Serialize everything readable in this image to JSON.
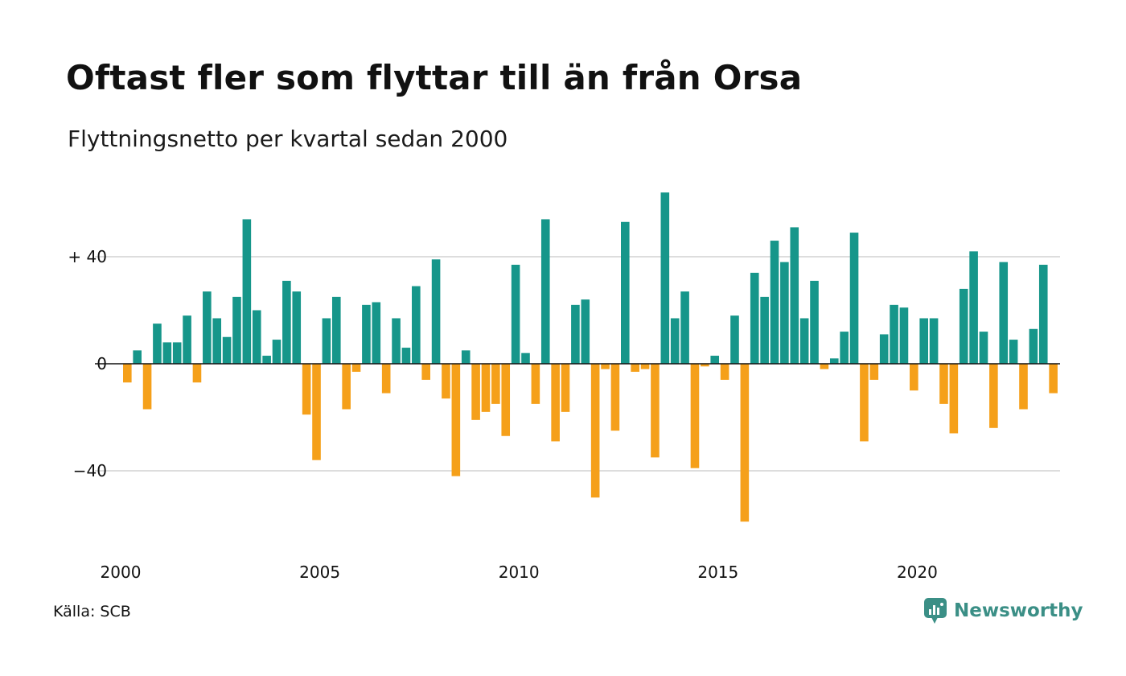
{
  "title": "Oftast fler som flyttar till än från Orsa",
  "subtitle": "Flyttningsnetto per kvartal sedan 2000",
  "source": "Källa: SCB",
  "brand": {
    "name": "Newsworthy",
    "icon": "newsworthy-logo-icon"
  },
  "colors": {
    "positive": "#16968a",
    "negative": "#f5a01a",
    "grid": "#dddddd",
    "zero": "#111111"
  },
  "chart_data": {
    "type": "bar",
    "title": "Oftast fler som flyttar till än från Orsa",
    "subtitle": "Flyttningsnetto per kvartal sedan 2000",
    "x_start_year": 2000,
    "quarters_per_year": 4,
    "x_ticks": [
      "2000",
      "2005",
      "2010",
      "2015",
      "2020"
    ],
    "y_ticks": [
      {
        "value": 40,
        "label": "+ 40"
      },
      {
        "value": 0,
        "label": "0"
      },
      {
        "value": -40,
        "label": "−40"
      }
    ],
    "ylim": [
      -62,
      66
    ],
    "grid": true,
    "values": [
      -7,
      5,
      -17,
      15,
      8,
      8,
      18,
      -7,
      27,
      17,
      10,
      25,
      54,
      20,
      3,
      9,
      31,
      27,
      -19,
      -36,
      17,
      25,
      -17,
      -3,
      22,
      23,
      -11,
      17,
      6,
      29,
      -6,
      39,
      -13,
      -42,
      5,
      -21,
      -18,
      -15,
      -27,
      37,
      4,
      -15,
      54,
      -29,
      -18,
      22,
      24,
      -50,
      -2,
      -25,
      53,
      -3,
      -2,
      -35,
      64,
      17,
      27,
      -39,
      -1,
      3,
      -6,
      18,
      -59,
      34,
      25,
      46,
      38,
      51,
      17,
      31,
      -2,
      2,
      12,
      49,
      -29,
      -6,
      11,
      22,
      21,
      -10,
      17,
      17,
      -15,
      -26,
      28,
      42,
      12,
      -24,
      38,
      9,
      -17,
      13,
      37,
      -11
    ]
  }
}
